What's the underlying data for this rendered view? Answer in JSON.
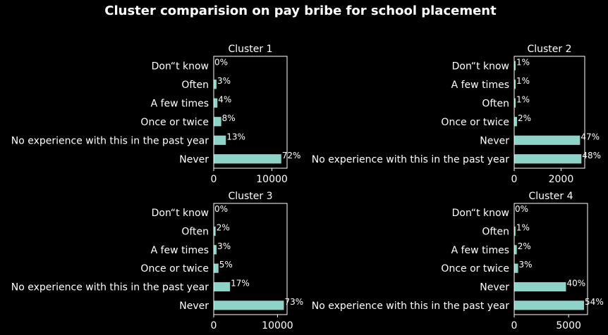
{
  "chart_data": {
    "type": "bar",
    "orientation": "horizontal",
    "title": "Cluster comparision on pay bribe for school placement",
    "bar_color": "#8dd3c7",
    "background": "#000000",
    "text_color": "#ffffff",
    "grid": false,
    "panels": [
      {
        "title": "Cluster 1",
        "categories": [
          "Never",
          "No experience with this in the past year",
          "Once or twice",
          "A few times",
          "Often",
          "Don“t know"
        ],
        "values": [
          11600,
          2090,
          1290,
          640,
          480,
          0
        ],
        "pct_labels": [
          "72%",
          "13%",
          "8%",
          "4%",
          "3%",
          "0%"
        ],
        "xlim": [
          0,
          12600
        ],
        "xticks": [
          0,
          10000
        ],
        "xtick_labels": [
          "0",
          "10000"
        ]
      },
      {
        "title": "Cluster 2",
        "categories": [
          "No experience with this in the past year",
          "Never",
          "Once or twice",
          "Often",
          "A few times",
          "Don“t know"
        ],
        "values": [
          2870,
          2810,
          120,
          60,
          60,
          60
        ],
        "pct_labels": [
          "48%",
          "47%",
          "2%",
          "1%",
          "1%",
          "1%"
        ],
        "xlim": [
          0,
          3010
        ],
        "xticks": [
          0,
          2000
        ],
        "xtick_labels": [
          "0",
          "2000"
        ]
      },
      {
        "title": "Cluster 3",
        "categories": [
          "Never",
          "No experience with this in the past year",
          "Once or twice",
          "A few times",
          "Often",
          "Don“t know"
        ],
        "values": [
          11000,
          2560,
          750,
          450,
          300,
          0
        ],
        "pct_labels": [
          "73%",
          "17%",
          "5%",
          "3%",
          "2%",
          "0%"
        ],
        "xlim": [
          0,
          11500
        ],
        "xticks": [
          0,
          10000
        ],
        "xtick_labels": [
          "0",
          "10000"
        ]
      },
      {
        "title": "Cluster 4",
        "categories": [
          "No experience with this in the past year",
          "Never",
          "Once or twice",
          "A few times",
          "Often",
          "Don“t know"
        ],
        "values": [
          6420,
          4760,
          360,
          240,
          120,
          0
        ],
        "pct_labels": [
          "54%",
          "40%",
          "3%",
          "2%",
          "1%",
          "0%"
        ],
        "xlim": [
          0,
          6740
        ],
        "xticks": [
          0,
          5000
        ],
        "xtick_labels": [
          "0",
          "5000"
        ]
      }
    ]
  }
}
